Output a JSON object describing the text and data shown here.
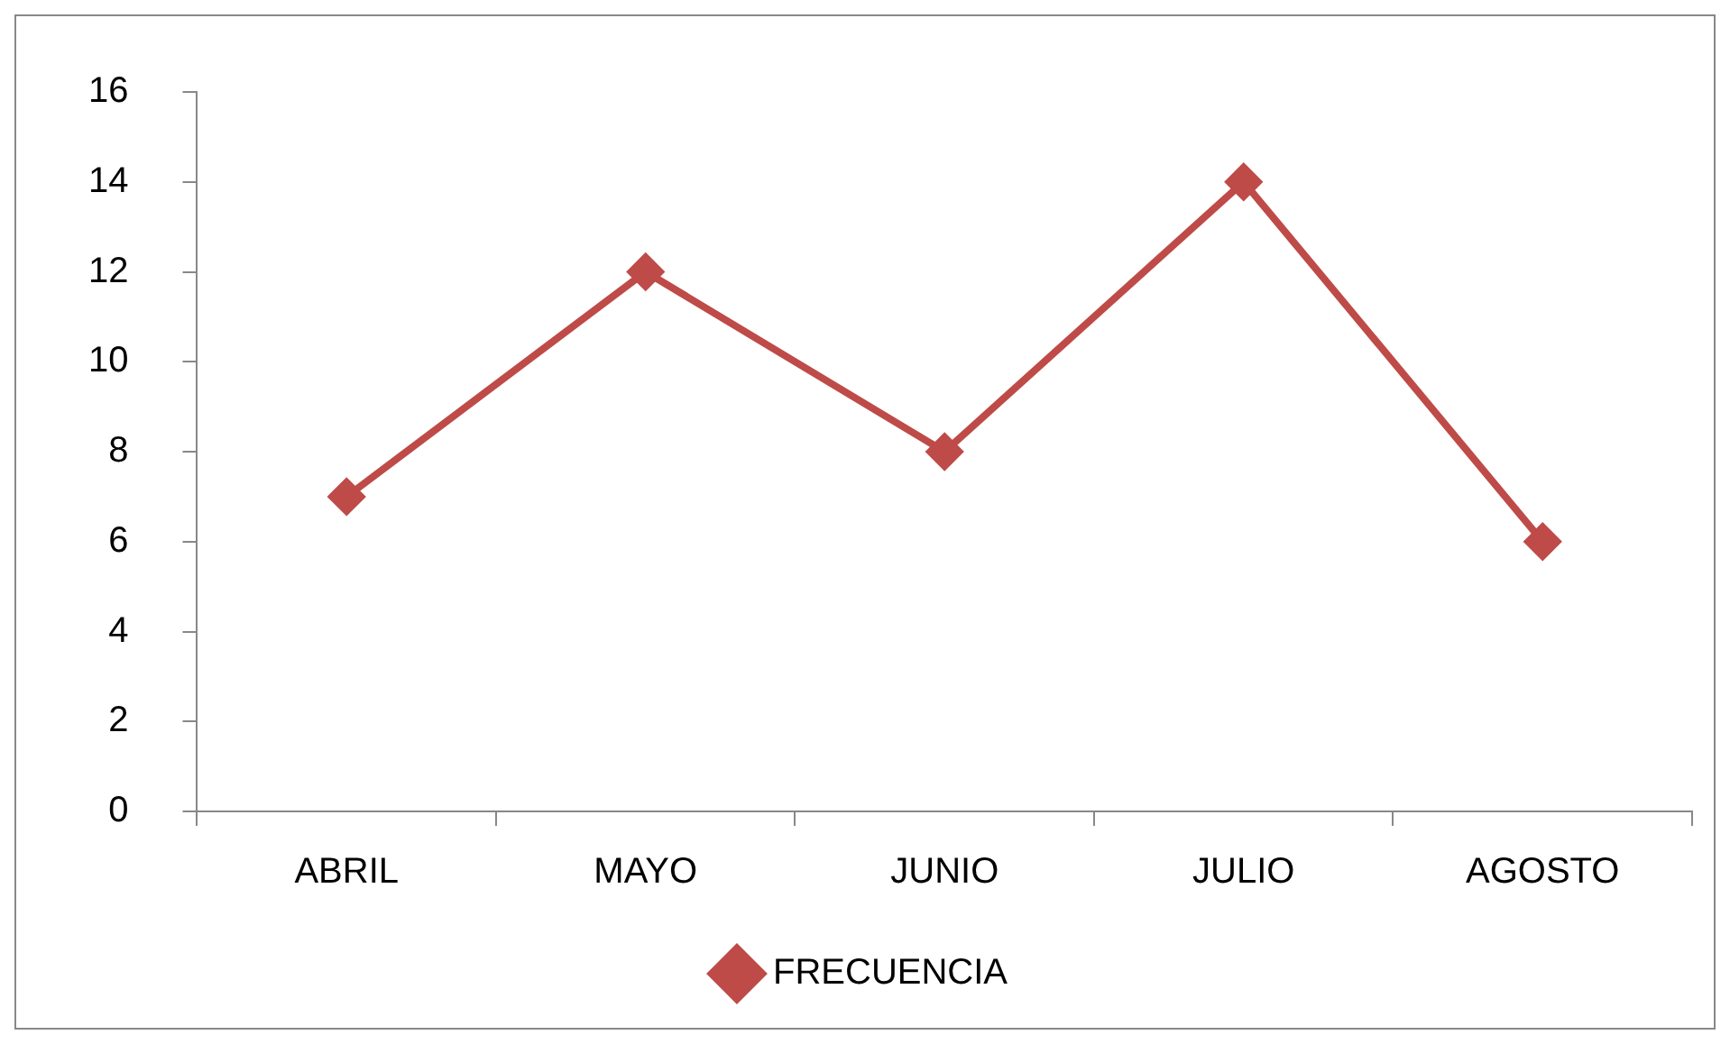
{
  "chart_data": {
    "type": "line",
    "categories": [
      "ABRIL",
      "MAYO",
      "JUNIO",
      "JULIO",
      "AGOSTO"
    ],
    "series": [
      {
        "name": "FRECUENCIA",
        "color": "#be4b48",
        "values": [
          7,
          12,
          8,
          14,
          6
        ]
      }
    ],
    "ylim": [
      0,
      16
    ],
    "yticks": [
      0,
      2,
      4,
      6,
      8,
      10,
      12,
      14,
      16
    ],
    "legend": "bottom",
    "marker": "diamond",
    "line_style": "solid"
  }
}
